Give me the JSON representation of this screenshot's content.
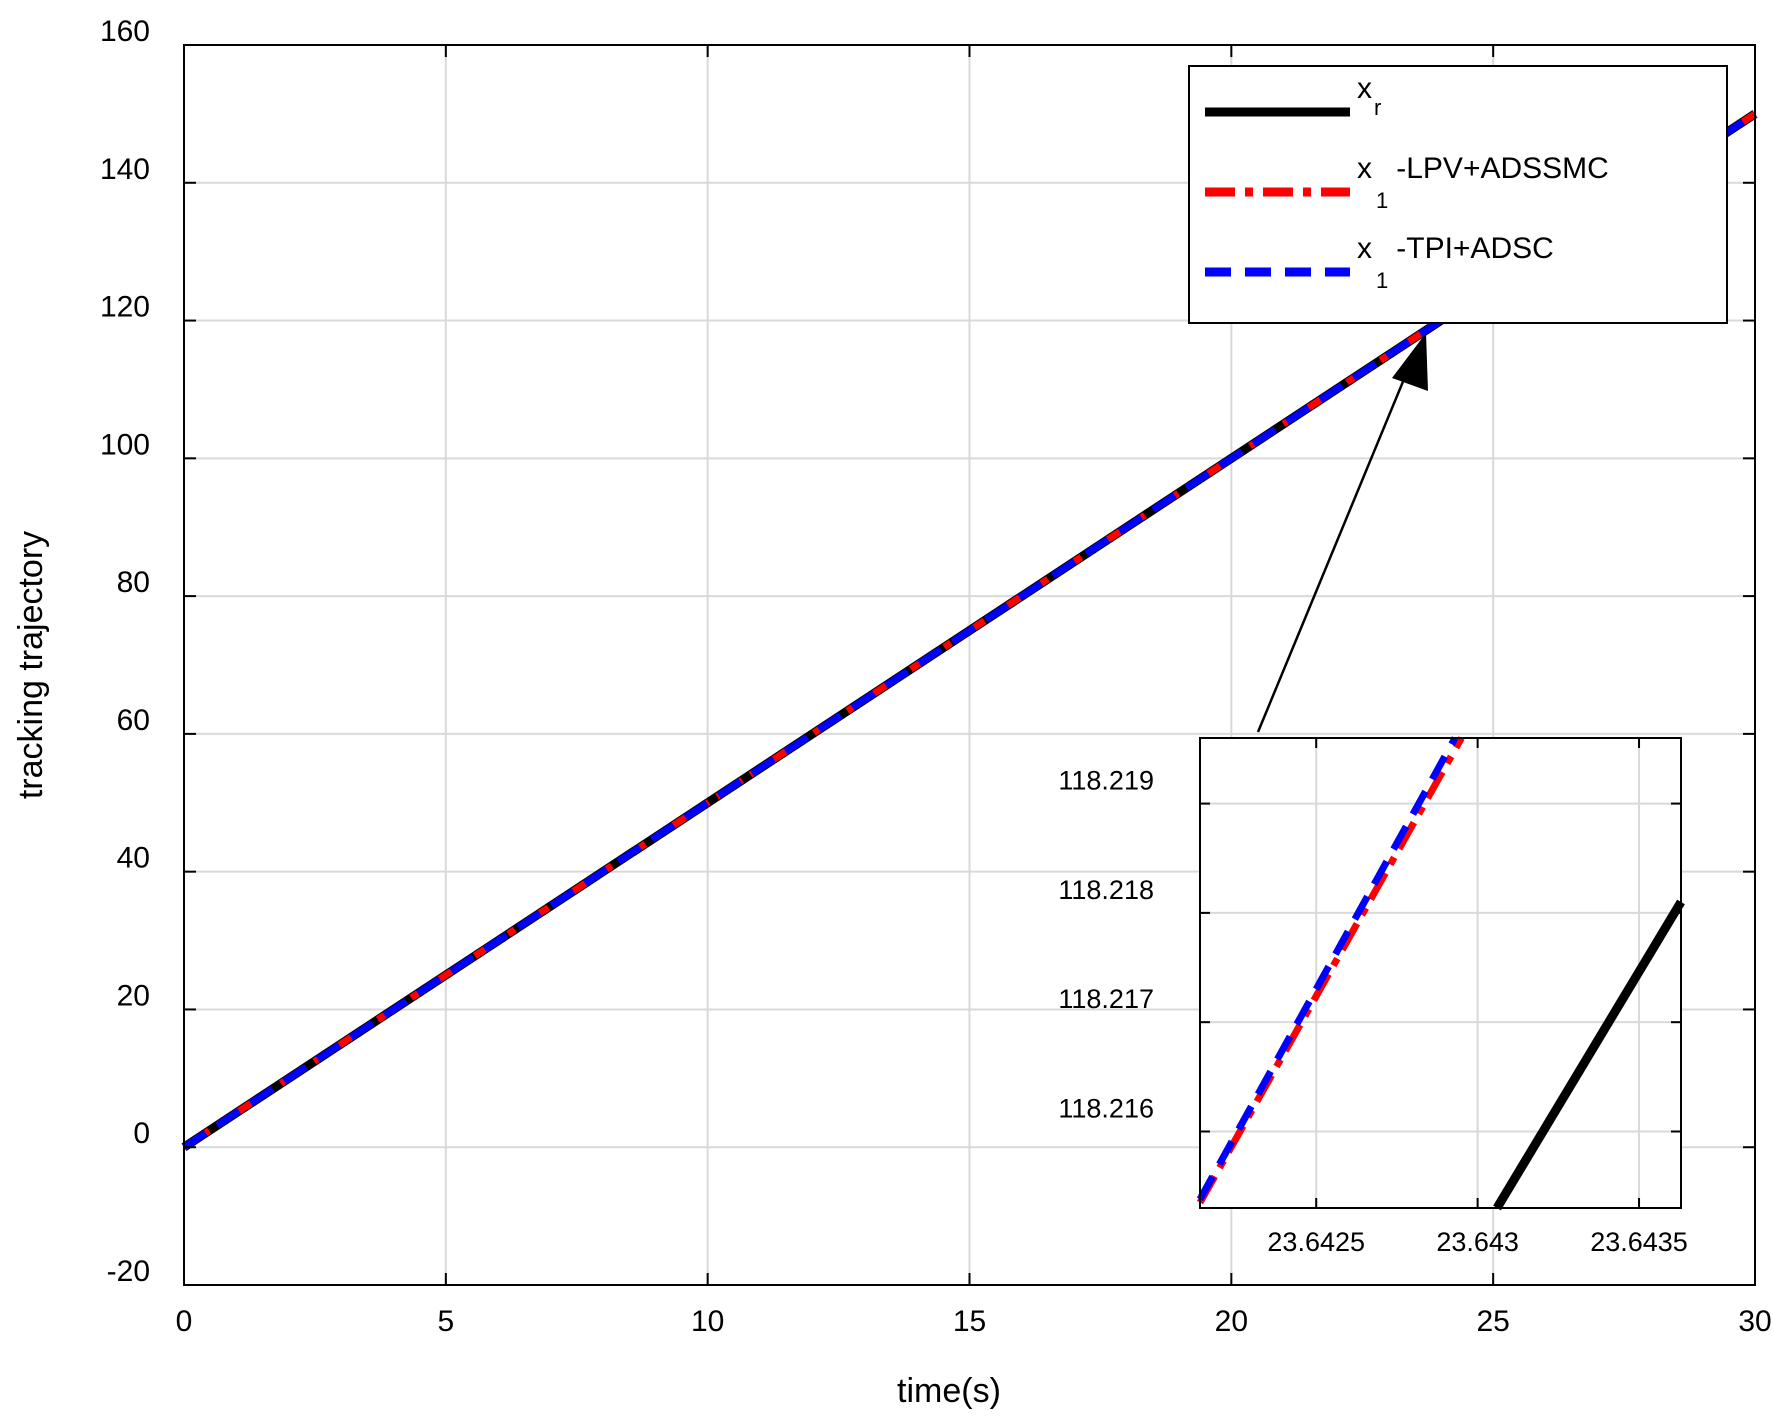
{
  "chart_data": [
    {
      "type": "line",
      "xlabel": "time(s)",
      "ylabel": "tracking trajectory",
      "xlim": [
        0,
        30
      ],
      "ylim": [
        -20,
        160
      ],
      "xticks": [
        0,
        5,
        10,
        15,
        20,
        25,
        30
      ],
      "yticks": [
        -20,
        0,
        20,
        40,
        60,
        80,
        100,
        120,
        140,
        160
      ],
      "grid": true,
      "legend_position": "top-right",
      "series": [
        {
          "name": "x",
          "subscript": "r",
          "color": "#000000",
          "style": "solid",
          "x": [
            0,
            30
          ],
          "y": [
            0,
            150
          ]
        },
        {
          "name": "x",
          "subscript": "1",
          "suffix": "-LPV+ADSSMC",
          "color": "#ff0000",
          "style": "dash-dot",
          "x": [
            0,
            30
          ],
          "y": [
            0,
            150
          ]
        },
        {
          "name": "x",
          "subscript": "1",
          "suffix": "-TPI+ADSC",
          "color": "#0000ff",
          "style": "dashed",
          "x": [
            0,
            30
          ],
          "y": [
            0,
            150
          ]
        }
      ],
      "annotation": {
        "type": "arrow",
        "from": "inset",
        "to_x": 23.64,
        "to_y": 118.2
      }
    },
    {
      "type": "line",
      "role": "inset zoom",
      "xlim": [
        23.64214,
        23.64363
      ],
      "ylim": [
        118.2153,
        118.2196
      ],
      "xticks": [
        23.6425,
        23.643,
        23.6435
      ],
      "xtick_labels": [
        "23.6425",
        "23.643",
        "23.6435"
      ],
      "yticks": [
        118.216,
        118.217,
        118.218,
        118.219
      ],
      "ytick_labels": [
        "118.216",
        "118.217",
        "118.218",
        "118.219"
      ],
      "grid": true,
      "series": [
        {
          "ref": "x_r",
          "color": "#000000",
          "style": "solid",
          "x": [
            23.64306,
            23.64363
          ],
          "y": [
            118.2153,
            118.2181
          ]
        },
        {
          "ref": "x1-LPV+ADSSMC",
          "color": "#ff0000",
          "style": "dash-dot",
          "x": [
            23.64214,
            23.64295
          ],
          "y": [
            118.21535,
            118.2196
          ]
        },
        {
          "ref": "x1-TPI+ADSC",
          "color": "#0000ff",
          "style": "dashed",
          "x": [
            23.64214,
            23.64293
          ],
          "y": [
            118.21538,
            118.2196
          ]
        }
      ]
    }
  ]
}
